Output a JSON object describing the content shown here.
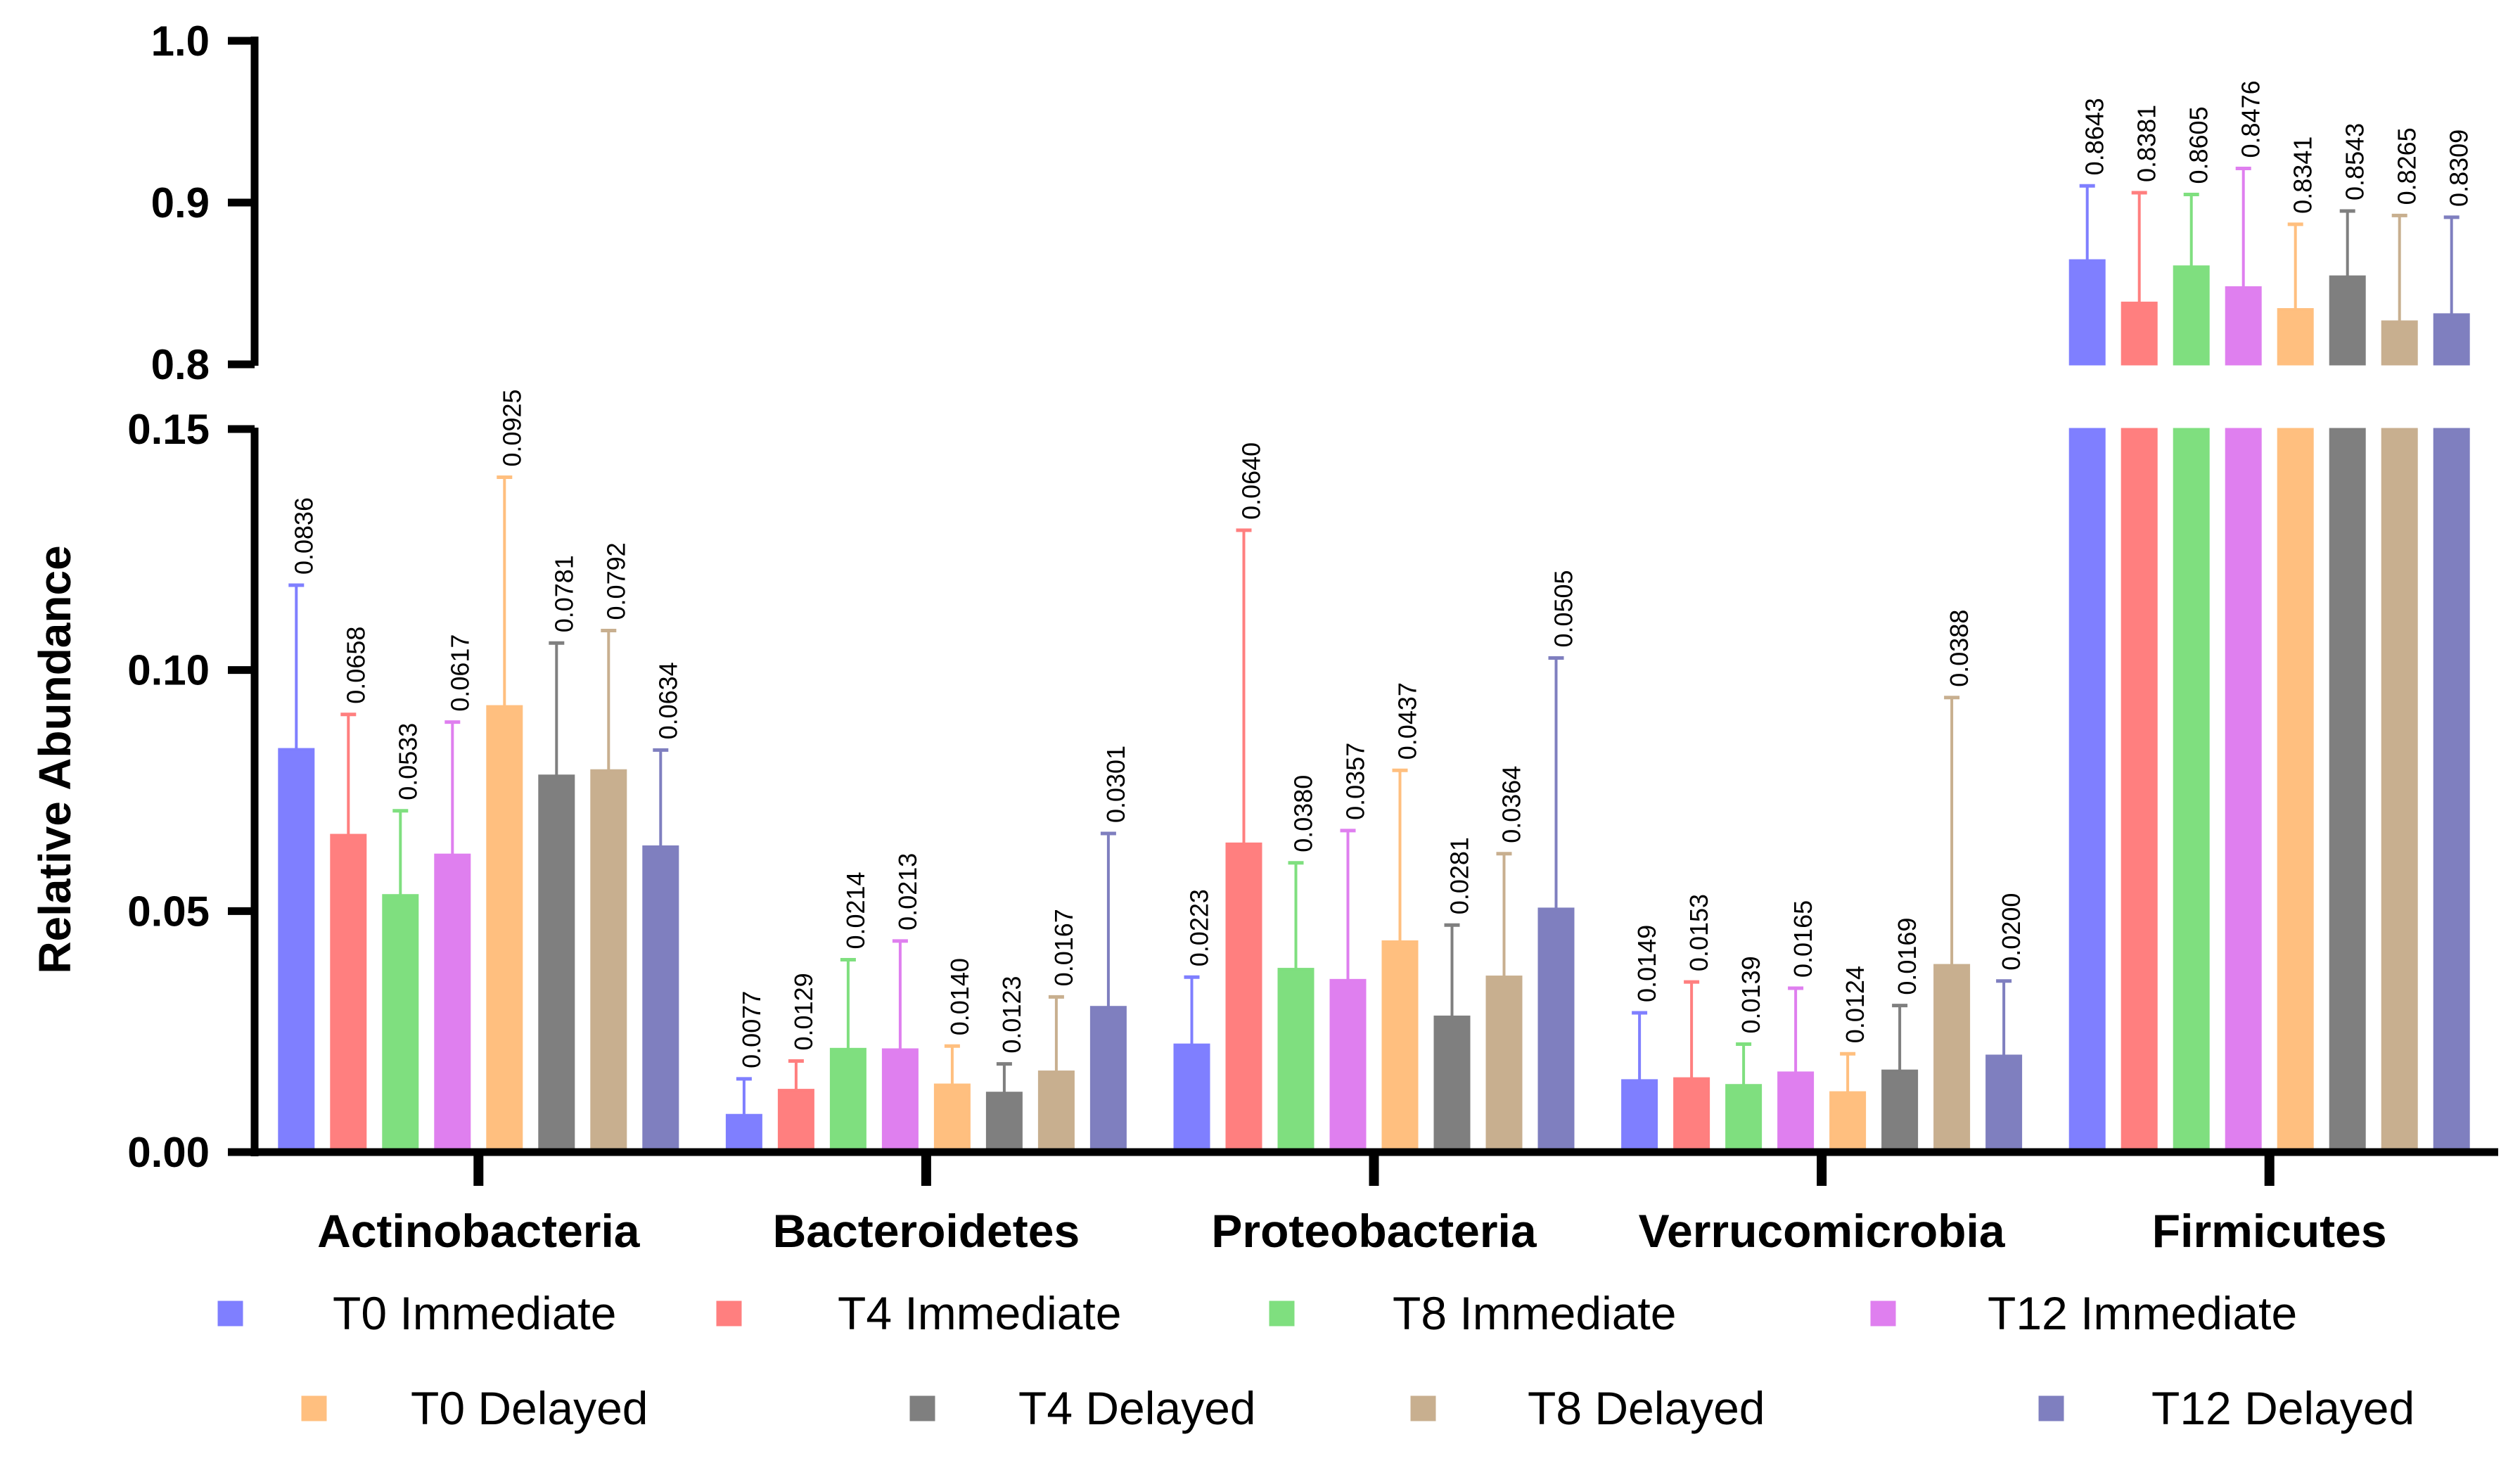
{
  "chart_data": {
    "type": "bar",
    "ylabel": "Relative Abundance",
    "xlabel": "",
    "categories": [
      "Actinobacteria",
      "Bacteroidetes",
      "Proteobacteria",
      "Verrucomicrobia",
      "Firmicutes"
    ],
    "y_axis_break": {
      "lower_range": [
        0,
        0.15
      ],
      "upper_range": [
        0.8,
        1.0
      ]
    },
    "yticks_lower": [
      "0.00",
      "0.05",
      "0.10",
      "0.15"
    ],
    "yticks_upper": [
      "0.8",
      "0.9",
      "1.0"
    ],
    "series": [
      {
        "name": "T0 Immediate",
        "color": "#7f7fff",
        "values": [
          0.0836,
          0.0077,
          0.0223,
          0.0149,
          0.8643
        ],
        "labels": [
          "0.0836",
          "0.0077",
          "0.0223",
          "0.0149",
          "0.8643"
        ],
        "errors": [
          0.034,
          0.0075,
          0.014,
          0.014,
          0.046
        ]
      },
      {
        "name": "T4 Immediate",
        "color": "#ff7f7f",
        "values": [
          0.0658,
          0.0129,
          0.064,
          0.0153,
          0.8381
        ],
        "labels": [
          "0.0658",
          "0.0129",
          "0.0640",
          "0.0153",
          "0.8381"
        ],
        "errors": [
          0.025,
          0.006,
          0.065,
          0.02,
          0.068
        ]
      },
      {
        "name": "T8 Immediate",
        "color": "#7fdf7f",
        "values": [
          0.0533,
          0.0214,
          0.038,
          0.0139,
          0.8605
        ],
        "labels": [
          "0.0533",
          "0.0214",
          "0.0380",
          "0.0139",
          "0.8605"
        ],
        "errors": [
          0.0175,
          0.0185,
          0.022,
          0.0085,
          0.0445
        ]
      },
      {
        "name": "T12 Immediate",
        "color": "#df7fef",
        "values": [
          0.0617,
          0.0213,
          0.0357,
          0.0165,
          0.8476
        ],
        "labels": [
          "0.0617",
          "0.0213",
          "0.0357",
          "0.0165",
          "0.8476"
        ],
        "errors": [
          0.0275,
          0.0225,
          0.031,
          0.0175,
          0.0735
        ]
      },
      {
        "name": "T0 Delayed",
        "color": "#ffbf7f",
        "values": [
          0.0925,
          0.014,
          0.0437,
          0.0124,
          0.8341
        ],
        "labels": [
          "0.0925",
          "0.0140",
          "0.0437",
          "0.0124",
          "0.8341"
        ],
        "errors": [
          0.0475,
          0.008,
          0.0355,
          0.008,
          0.0525
        ]
      },
      {
        "name": "T4 Delayed",
        "color": "#7f7f7f",
        "values": [
          0.0781,
          0.0123,
          0.0281,
          0.0169,
          0.8543
        ],
        "labels": [
          "0.0781",
          "0.0123",
          "0.0281",
          "0.0169",
          "0.8543"
        ],
        "errors": [
          0.0275,
          0.006,
          0.019,
          0.0135,
          0.0405
        ]
      },
      {
        "name": "T8 Delayed",
        "color": "#c8af8f",
        "values": [
          0.0792,
          0.0167,
          0.0364,
          0.0388,
          0.8265
        ],
        "labels": [
          "0.0792",
          "0.0167",
          "0.0364",
          "0.0388",
          "0.8265"
        ],
        "errors": [
          0.029,
          0.0155,
          0.0255,
          0.0555,
          0.0655
        ]
      },
      {
        "name": "T12 Delayed",
        "color": "#7f7fbf",
        "values": [
          0.0634,
          0.0301,
          0.0505,
          0.02,
          0.8309
        ],
        "labels": [
          "0.0634",
          "0.0301",
          "0.0505",
          "0.0200",
          "0.8309"
        ],
        "errors": [
          0.02,
          0.036,
          0.052,
          0.0155,
          0.06
        ]
      }
    ],
    "legend_position": "bottom"
  }
}
